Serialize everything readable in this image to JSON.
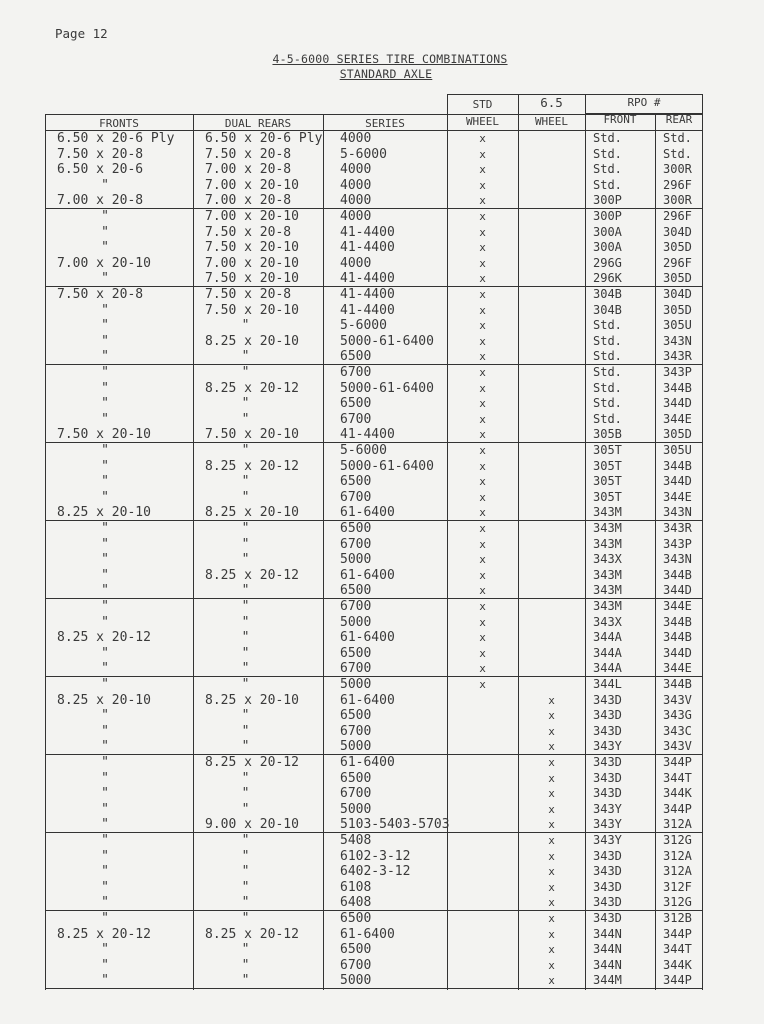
{
  "page_label": "Page 12",
  "title": "4-5-6000 SERIES TIRE COMBINATIONS",
  "subtitle": "STANDARD AXLE",
  "headers": {
    "fronts": "FRONTS",
    "dual_rears": "DUAL REARS",
    "series": "SERIES",
    "std_top": "STD",
    "std_bottom": "WHEEL",
    "w65_top": "6.5",
    "w65_bottom": "WHEEL",
    "rpo": "RPO #",
    "rpo_front": "FRONT",
    "rpo_rear": "REAR"
  },
  "rows": [
    [
      "6.50 x 20-6 Ply",
      "6.50 x 20-6 Ply",
      "4000",
      "x",
      "",
      "Std.",
      "Std."
    ],
    [
      "7.50 x 20-8",
      "7.50 x 20-8",
      "5-6000",
      "x",
      "",
      "Std.",
      "Std."
    ],
    [
      "6.50 x 20-6",
      "7.00 x 20-8",
      "4000",
      "x",
      "",
      "Std.",
      "300R"
    ],
    [
      "\"",
      "7.00 x 20-10",
      "4000",
      "x",
      "",
      "Std.",
      "296F"
    ],
    [
      "7.00 x 20-8",
      "7.00 x 20-8",
      "4000",
      "x",
      "",
      "300P",
      "300R"
    ],
    [
      "\"",
      "7.00 x 20-10",
      "4000",
      "x",
      "",
      "300P",
      "296F"
    ],
    [
      "\"",
      "7.50 x 20-8",
      "41-4400",
      "x",
      "",
      "300A",
      "304D"
    ],
    [
      "\"",
      "7.50 x 20-10",
      "41-4400",
      "x",
      "",
      "300A",
      "305D"
    ],
    [
      "7.00 x 20-10",
      "7.00 x 20-10",
      "4000",
      "x",
      "",
      "296G",
      "296F"
    ],
    [
      "\"",
      "7.50 x 20-10",
      "41-4400",
      "x",
      "",
      "296K",
      "305D"
    ],
    [
      "7.50 x 20-8",
      "7.50 x 20-8",
      "41-4400",
      "x",
      "",
      "304B",
      "304D"
    ],
    [
      "\"",
      "7.50 x 20-10",
      "41-4400",
      "x",
      "",
      "304B",
      "305D"
    ],
    [
      "\"",
      "\"",
      "5-6000",
      "x",
      "",
      "Std.",
      "305U"
    ],
    [
      "\"",
      "8.25 x 20-10",
      "5000-61-6400",
      "x",
      "",
      "Std.",
      "343N"
    ],
    [
      "\"",
      "\"",
      "6500",
      "x",
      "",
      "Std.",
      "343R"
    ],
    [
      "\"",
      "\"",
      "6700",
      "x",
      "",
      "Std.",
      "343P"
    ],
    [
      "\"",
      "8.25 x 20-12",
      "5000-61-6400",
      "x",
      "",
      "Std.",
      "344B"
    ],
    [
      "\"",
      "\"",
      "6500",
      "x",
      "",
      "Std.",
      "344D"
    ],
    [
      "\"",
      "\"",
      "6700",
      "x",
      "",
      "Std.",
      "344E"
    ],
    [
      "7.50 x 20-10",
      "7.50 x 20-10",
      "41-4400",
      "x",
      "",
      "305B",
      "305D"
    ],
    [
      "\"",
      "\"",
      "5-6000",
      "x",
      "",
      "305T",
      "305U"
    ],
    [
      "\"",
      "8.25 x 20-12",
      "5000-61-6400",
      "x",
      "",
      "305T",
      "344B"
    ],
    [
      "\"",
      "\"",
      "6500",
      "x",
      "",
      "305T",
      "344D"
    ],
    [
      "\"",
      "\"",
      "6700",
      "x",
      "",
      "305T",
      "344E"
    ],
    [
      "8.25 x 20-10",
      "8.25 x 20-10",
      "61-6400",
      "x",
      "",
      "343M",
      "343N"
    ],
    [
      "\"",
      "\"",
      "6500",
      "x",
      "",
      "343M",
      "343R"
    ],
    [
      "\"",
      "\"",
      "6700",
      "x",
      "",
      "343M",
      "343P"
    ],
    [
      "\"",
      "\"",
      "5000",
      "x",
      "",
      "343X",
      "343N"
    ],
    [
      "\"",
      "8.25 x 20-12",
      "61-6400",
      "x",
      "",
      "343M",
      "344B"
    ],
    [
      "\"",
      "\"",
      "6500",
      "x",
      "",
      "343M",
      "344D"
    ],
    [
      "\"",
      "\"",
      "6700",
      "x",
      "",
      "343M",
      "344E"
    ],
    [
      "\"",
      "\"",
      "5000",
      "x",
      "",
      "343X",
      "344B"
    ],
    [
      "8.25 x 20-12",
      "\"",
      "61-6400",
      "x",
      "",
      "344A",
      "344B"
    ],
    [
      "\"",
      "\"",
      "6500",
      "x",
      "",
      "344A",
      "344D"
    ],
    [
      "\"",
      "\"",
      "6700",
      "x",
      "",
      "344A",
      "344E"
    ],
    [
      "\"",
      "\"",
      "5000",
      "x",
      "",
      "344L",
      "344B"
    ],
    [
      "8.25 x 20-10",
      "8.25 x 20-10",
      "61-6400",
      "",
      "x",
      "343D",
      "343V"
    ],
    [
      "\"",
      "\"",
      "6500",
      "",
      "x",
      "343D",
      "343G"
    ],
    [
      "\"",
      "\"",
      "6700",
      "",
      "x",
      "343D",
      "343C"
    ],
    [
      "\"",
      "\"",
      "5000",
      "",
      "x",
      "343Y",
      "343V"
    ],
    [
      "\"",
      "8.25 x 20-12",
      "61-6400",
      "",
      "x",
      "343D",
      "344P"
    ],
    [
      "\"",
      "\"",
      "6500",
      "",
      "x",
      "343D",
      "344T"
    ],
    [
      "\"",
      "\"",
      "6700",
      "",
      "x",
      "343D",
      "344K"
    ],
    [
      "\"",
      "\"",
      "5000",
      "",
      "x",
      "343Y",
      "344P"
    ],
    [
      "\"",
      "9.00 x 20-10",
      "5103-5403-5703",
      "",
      "x",
      "343Y",
      "312A"
    ],
    [
      "\"",
      "\"",
      "5408",
      "",
      "x",
      "343Y",
      "312G"
    ],
    [
      "\"",
      "\"",
      "6102-3-12",
      "",
      "x",
      "343D",
      "312A"
    ],
    [
      "\"",
      "\"",
      "6402-3-12",
      "",
      "x",
      "343D",
      "312A"
    ],
    [
      "\"",
      "\"",
      "6108",
      "",
      "x",
      "343D",
      "312F"
    ],
    [
      "\"",
      "\"",
      "6408",
      "",
      "x",
      "343D",
      "312G"
    ],
    [
      "\"",
      "\"",
      "6500",
      "",
      "x",
      "343D",
      "312B"
    ],
    [
      "8.25 x 20-12",
      "8.25 x 20-12",
      "61-6400",
      "",
      "x",
      "344N",
      "344P"
    ],
    [
      "\"",
      "\"",
      "6500",
      "",
      "x",
      "344N",
      "344T"
    ],
    [
      "\"",
      "\"",
      "6700",
      "",
      "x",
      "344N",
      "344K"
    ],
    [
      "\"",
      "\"",
      "5000",
      "",
      "x",
      "344M",
      "344P"
    ]
  ]
}
